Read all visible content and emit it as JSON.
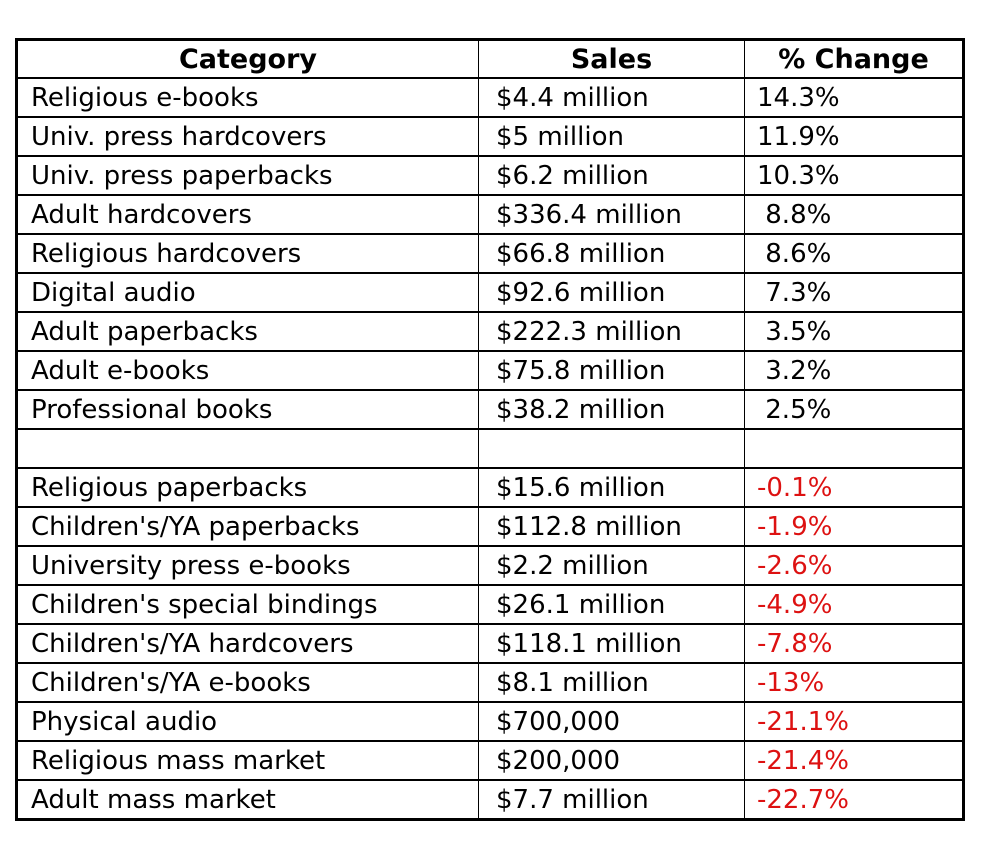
{
  "colors": {
    "negative_pct_text": "#dd1111",
    "positive_pct_text": "#000000",
    "body_text": "#000000",
    "border": "#000000",
    "background": "#ffffff"
  },
  "chart_data": {
    "type": "table",
    "columns": [
      "Category",
      "Sales",
      "% Change"
    ],
    "legend_position": "none",
    "grid": "full-borders",
    "notes_layout": "blank spacer row separates positive-change rows from negative-change rows; negative % values rendered in red",
    "rows": [
      {
        "category": "Religious e-books",
        "sales": "$4.4 million",
        "sales_millions": 4.4,
        "pct_display": "14.3%",
        "pct_value": 14.3
      },
      {
        "category": "Univ. press hardcovers",
        "sales": "$5 million",
        "sales_millions": 5,
        "pct_display": "11.9%",
        "pct_value": 11.9
      },
      {
        "category": "Univ. press paperbacks",
        "sales": "$6.2 million",
        "sales_millions": 6.2,
        "pct_display": "10.3%",
        "pct_value": 10.3
      },
      {
        "category": "Adult hardcovers",
        "sales": "$336.4 million",
        "sales_millions": 336.4,
        "pct_display": " 8.8%",
        "pct_value": 8.8
      },
      {
        "category": "Religious hardcovers",
        "sales": "$66.8 million",
        "sales_millions": 66.8,
        "pct_display": " 8.6%",
        "pct_value": 8.6
      },
      {
        "category": "Digital audio",
        "sales": "$92.6 million",
        "sales_millions": 92.6,
        "pct_display": " 7.3%",
        "pct_value": 7.3
      },
      {
        "category": "Adult paperbacks",
        "sales": "$222.3 million",
        "sales_millions": 222.3,
        "pct_display": " 3.5%",
        "pct_value": 3.5
      },
      {
        "category": "Adult e-books",
        "sales": "$75.8 million",
        "sales_millions": 75.8,
        "pct_display": " 3.2%",
        "pct_value": 3.2
      },
      {
        "category": "Professional books",
        "sales": "$38.2 million",
        "sales_millions": 38.2,
        "pct_display": " 2.5%",
        "pct_value": 2.5
      },
      {
        "spacer": true
      },
      {
        "category": "Religious paperbacks",
        "sales": "$15.6 million",
        "sales_millions": 15.6,
        "pct_display": "-0.1%",
        "pct_value": -0.1
      },
      {
        "category": "Children's/YA paperbacks",
        "sales": "$112.8 million",
        "sales_millions": 112.8,
        "pct_display": "-1.9%",
        "pct_value": -1.9
      },
      {
        "category": "University press e-books",
        "sales": "$2.2 million",
        "sales_millions": 2.2,
        "pct_display": "-2.6%",
        "pct_value": -2.6
      },
      {
        "category": "Children's special bindings",
        "sales": "$26.1 million",
        "sales_millions": 26.1,
        "pct_display": "-4.9%",
        "pct_value": -4.9
      },
      {
        "category": "Children's/YA hardcovers",
        "sales": "$118.1 million",
        "sales_millions": 118.1,
        "pct_display": "-7.8%",
        "pct_value": -7.8
      },
      {
        "category": "Children's/YA e-books",
        "sales": "$8.1 million",
        "sales_millions": 8.1,
        "pct_display": "-13%",
        "pct_value": -13
      },
      {
        "category": "Physical audio",
        "sales": "$700,000",
        "sales_millions": 0.7,
        "pct_display": "-21.1%",
        "pct_value": -21.1
      },
      {
        "category": "Religious mass market",
        "sales": "$200,000",
        "sales_millions": 0.2,
        "pct_display": "-21.4%",
        "pct_value": -21.4
      },
      {
        "category": "Adult mass market",
        "sales": "$7.7 million",
        "sales_millions": 7.7,
        "pct_display": "-22.7%",
        "pct_value": -22.7
      }
    ]
  }
}
